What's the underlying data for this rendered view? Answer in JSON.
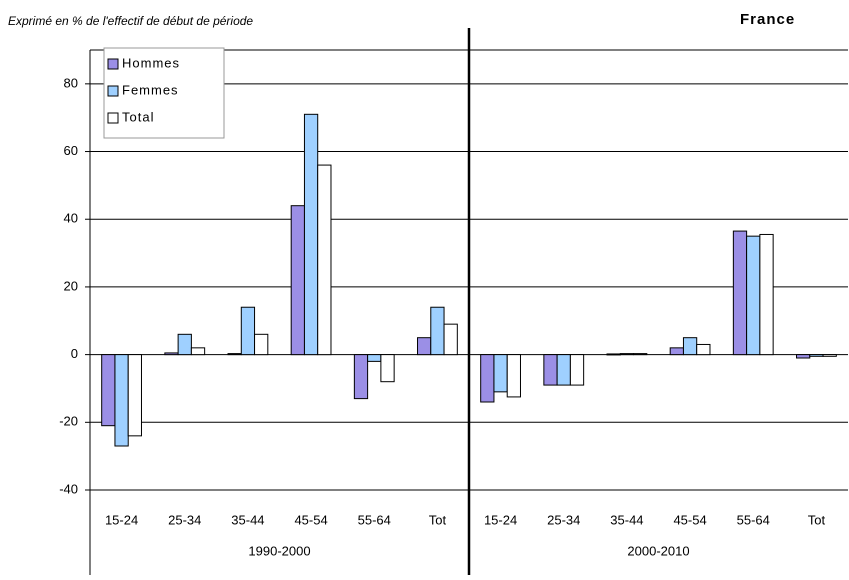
{
  "chart_data": {
    "type": "bar",
    "title": "Exprimé en % de l'effectif de début de période",
    "subtitle": "France",
    "categories": [
      "15-24",
      "25-34",
      "35-44",
      "45-54",
      "55-64",
      "Tot",
      "15-24",
      "25-34",
      "35-44",
      "45-54",
      "55-64",
      "Tot"
    ],
    "category_groups": [
      "1990-2000",
      "2000-2010"
    ],
    "series": [
      {
        "name": "Hommes",
        "color": "#9b8fe6",
        "values": [
          -21,
          0.5,
          0.3,
          44,
          -13,
          5,
          -14,
          -9,
          0.2,
          2,
          36.5,
          -1
        ]
      },
      {
        "name": "Femmes",
        "color": "#9fd0ff",
        "values": [
          -27,
          6,
          14,
          71,
          -2,
          14,
          -11,
          -9,
          0.3,
          5,
          35,
          -0.5
        ]
      },
      {
        "name": "Total",
        "color": "#ffffff",
        "values": [
          -24,
          2,
          6,
          56,
          -8,
          9,
          -12.5,
          -9,
          0.3,
          3,
          35.5,
          -0.5
        ]
      }
    ],
    "ylim": [
      -40,
      90
    ],
    "yticks": [
      -40,
      -20,
      0,
      20,
      40,
      60,
      80
    ],
    "grid": true,
    "legend": "top-left"
  }
}
